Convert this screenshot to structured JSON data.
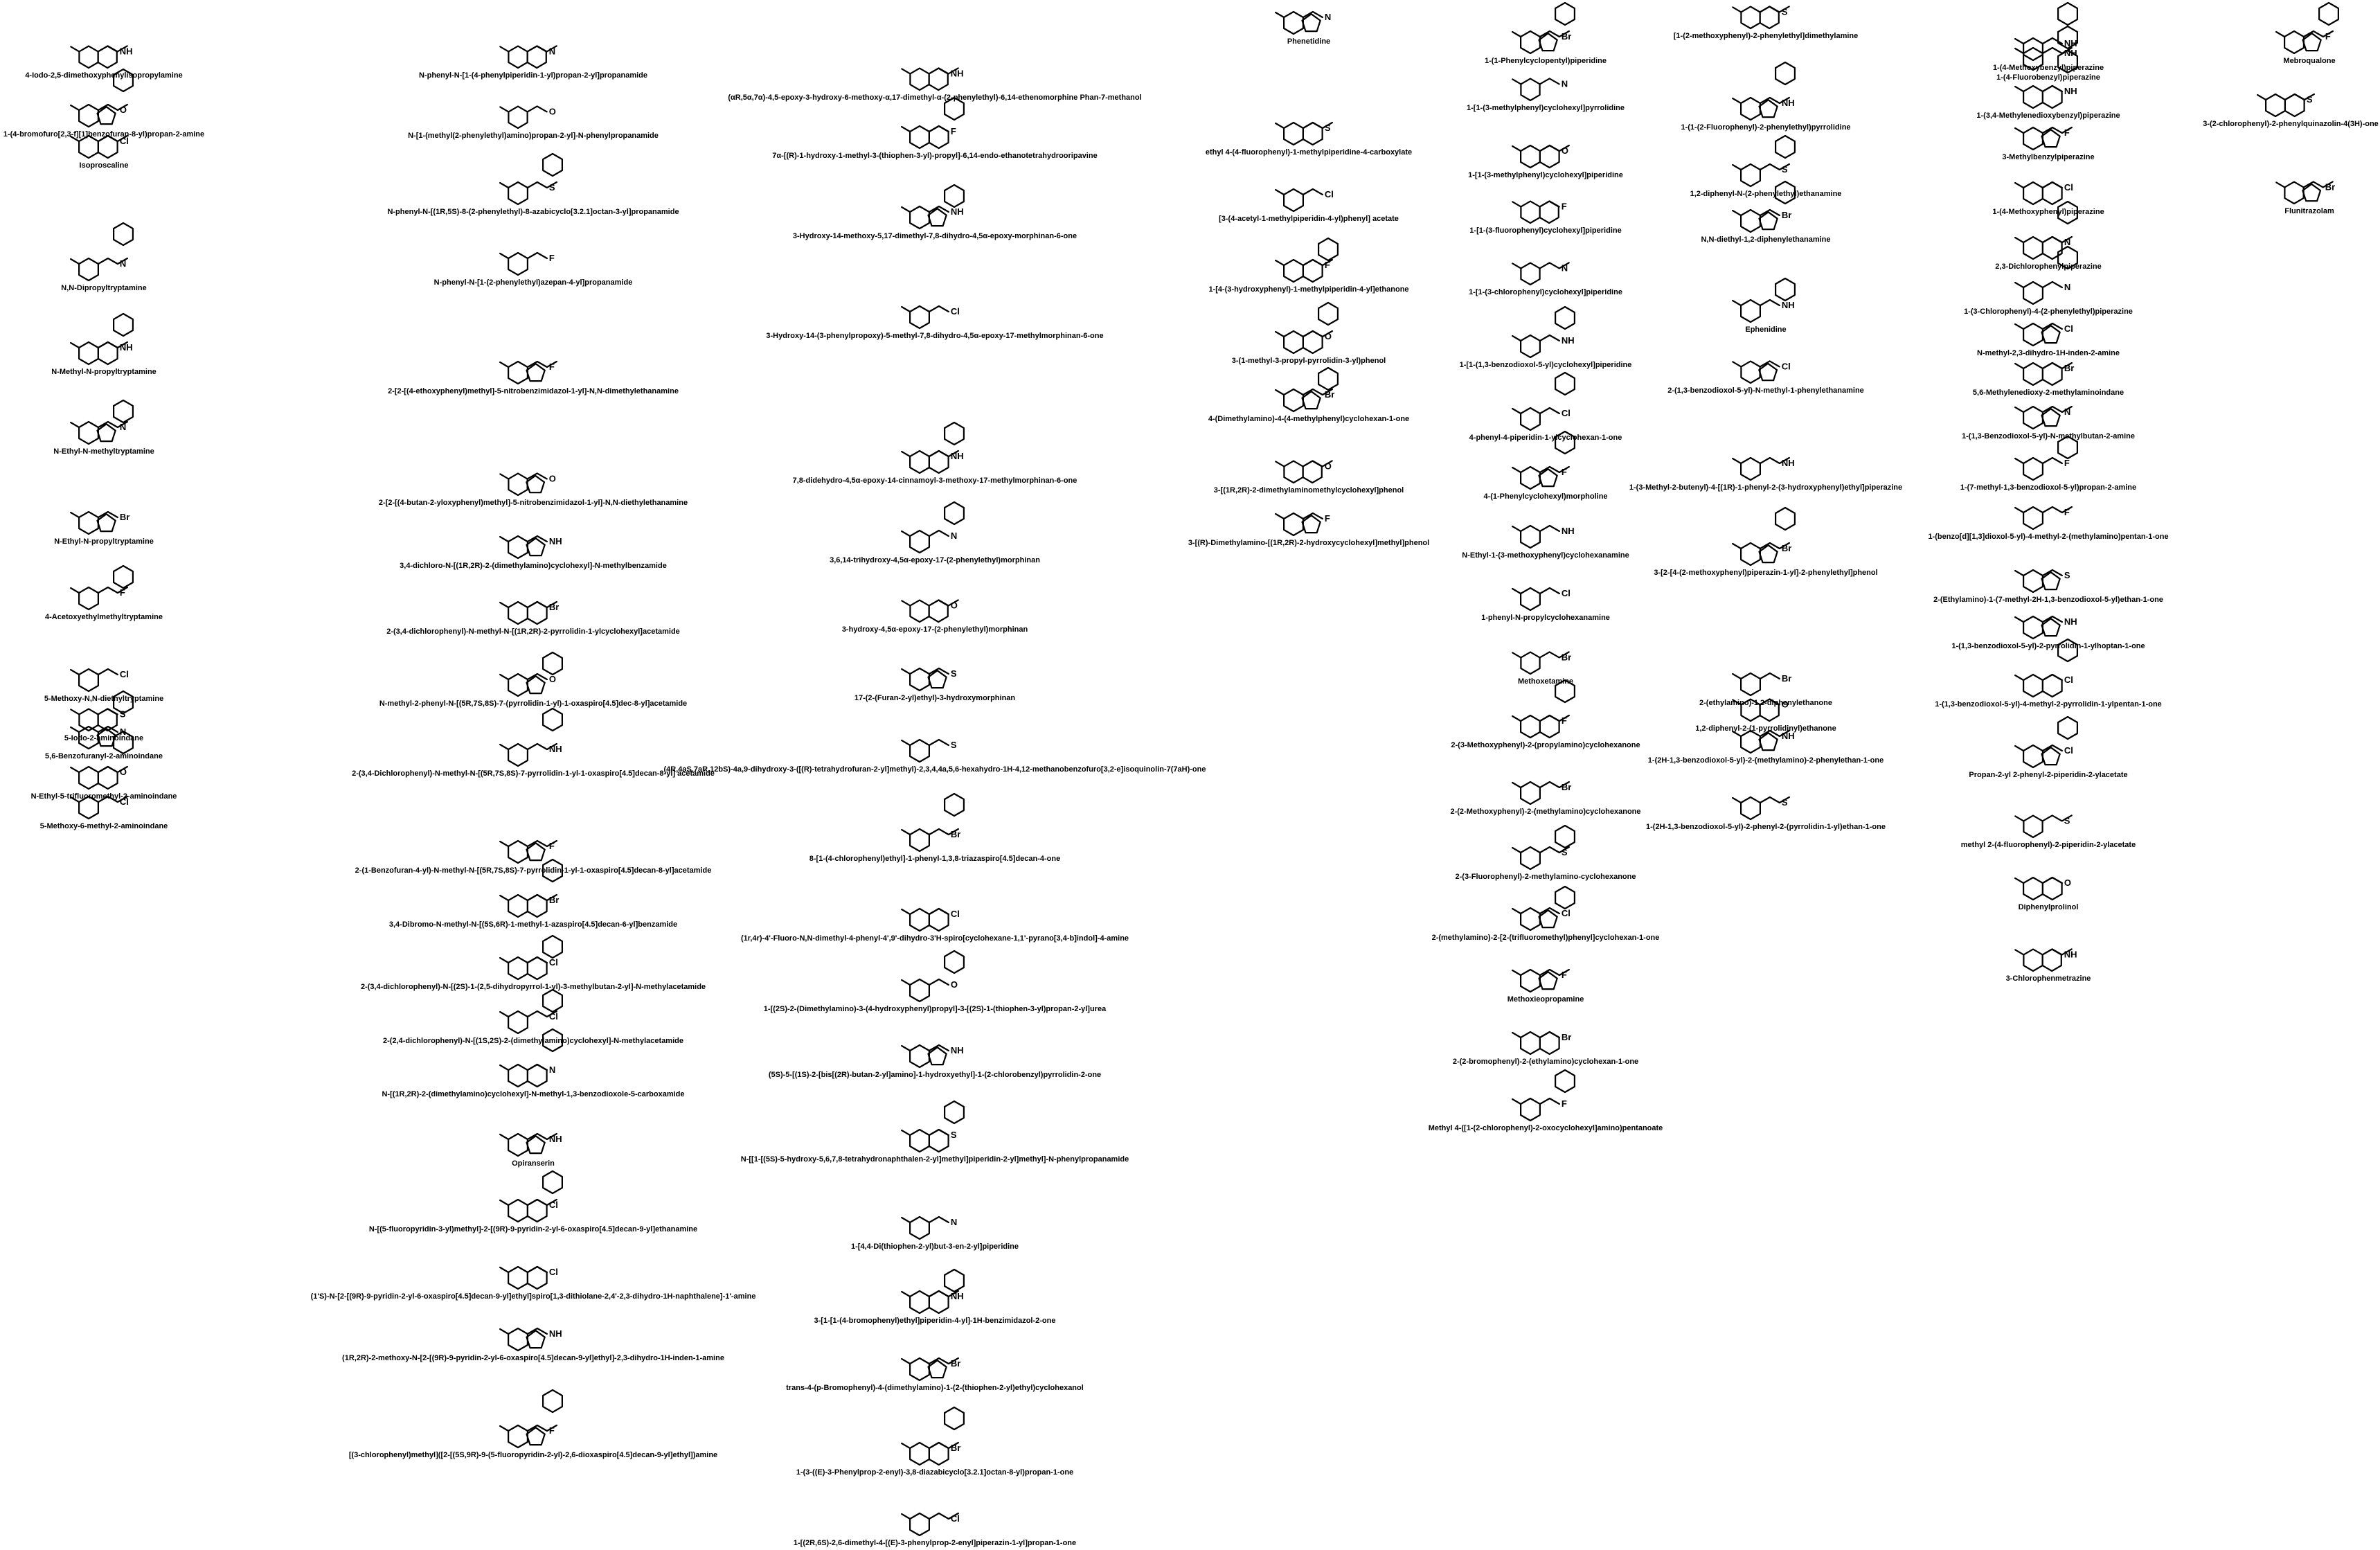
{
  "columns": [
    {
      "compounds": [
        "4-Iodo-2,5-dimethoxyphenylisopropylamine",
        "1-(4-bromofuro[2,3-f][1]benzofuran-8-yl)propan-2-amine",
        "Isoproscaline",
        "N,N-Dipropyltryptamine",
        "N-Methyl-N-propyltryptamine",
        "N-Ethyl-N-methyltryptamine",
        "N-Ethyl-N-propyltryptamine",
        "4-Acetoxyethylmethyltryptamine",
        "5-Methoxy-N,N-diethyltryptamine",
        "5-Iodo-2-aminoindane",
        "5,6-Benzofuranyl-2-aminoindane",
        "N-Ethyl-5-trifluoromethyl-2-aminoindane",
        "5-Methoxy-6-methyl-2-aminoindane"
      ]
    },
    {
      "compounds": [
        "N-phenyl-N-[1-(4-phenylpiperidin-1-yl)propan-2-yl]propanamide",
        "N-[1-(methyl(2-phenylethyl)amino)propan-2-yl]-N-phenylpropanamide",
        "N-phenyl-N-[(1R,5S)-8-(2-phenylethyl)-8-azabicyclo[3.2.1]octan-3-yl]propanamide",
        "N-phenyl-N-[1-(2-phenylethyl)azepan-4-yl]propanamide",
        "2-[2-[(4-ethoxyphenyl)methyl]-5-nitrobenzimidazol-1-yl]-N,N-dimethylethanamine",
        "2-[2-[(4-butan-2-yloxyphenyl)methyl]-5-nitrobenzimidazol-1-yl]-N,N-diethylethanamine",
        "3,4-dichloro-N-[(1R,2R)-2-(dimethylamino)cyclohexyl]-N-methylbenzamide",
        "2-(3,4-dichlorophenyl)-N-methyl-N-[(1R,2R)-2-pyrrolidin-1-ylcyclohexyl]acetamide",
        "N-methyl-2-phenyl-N-[(5R,7S,8S)-7-(pyrrolidin-1-yl)-1-oxaspiro[4.5]dec-8-yl]acetamide",
        "2-(3,4-Dichlorophenyl)-N-methyl-N-[(5R,7S,8S)-7-pyrrolidin-1-yl-1-oxaspiro[4.5]decan-8-yl] acetamide",
        "2-(1-Benzofuran-4-yl)-N-methyl-N-[(5R,7S,8S)-7-pyrrolidin-1-yl-1-oxaspiro[4.5]decan-8-yl]acetamide",
        "3,4-Dibromo-N-methyl-N-[(5S,6R)-1-methyl-1-azaspiro[4.5]decan-6-yl]benzamide",
        "2-(3,4-dichlorophenyl)-N-[(2S)-1-(2,5-dihydropyrrol-1-yl)-3-methylbutan-2-yl]-N-methylacetamide",
        "2-(2,4-dichlorophenyl)-N-[(1S,2S)-2-(dimethylamino)cyclohexyl]-N-methylacetamide",
        "N-[(1R,2R)-2-(dimethylamino)cyclohexyl]-N-methyl-1,3-benzodioxole-5-carboxamide",
        "Opiranserin",
        "N-[(5-fluoropyridin-3-yl)methyl]-2-[(9R)-9-pyridin-2-yl-6-oxaspiro[4.5]decan-9-yl]ethanamine",
        "(1'S)-N-[2-[(9R)-9-pyridin-2-yl-6-oxaspiro[4.5]decan-9-yl]ethyl]spiro[1,3-dithiolane-2,4'-2,3-dihydro-1H-naphthalene]-1'-amine",
        "(1R,2R)-2-methoxy-N-[2-[(9R)-9-pyridin-2-yl-6-oxaspiro[4.5]decan-9-yl]ethyl]-2,3-dihydro-1H-inden-1-amine",
        "[(3-chlorophenyl)methyl]([2-[(5S,9R)-9-(5-fluoropyridin-2-yl)-2,6-dioxaspiro[4.5]decan-9-yl]ethyl])amine"
      ]
    },
    {
      "compounds": [
        "(αR,5α,7α)-4,5-epoxy-3-hydroxy-6-methoxy-α,17-dimethyl-α-(2-phenylethyl)-6,14-ethenomorphine Phan-7-methanol",
        "7α-[(R)-1-hydroxy-1-methyl-3-(thiophen-3-yl)-propyl]-6,14-endo-ethanotetrahydrooripavine",
        "3-Hydroxy-14-methoxy-5,17-dimethyl-7,8-dihydro-4,5α-epoxy-morphinan-6-one",
        "3-Hydroxy-14-(3-phenylpropoxy)-5-methyl-7,8-dihydro-4,5α-epoxy-17-methylmorphinan-6-one",
        "7,8-didehydro-4,5α-epoxy-14-cinnamoyl-3-methoxy-17-methylmorphinan-6-one",
        "3,6,14-trihydroxy-4,5α-epoxy-17-(2-phenylethyl)morphinan",
        "3-hydroxy-4,5α-epoxy-17-(2-phenylethyl)morphinan",
        "17-(2-(Furan-2-yl)ethyl)-3-hydroxymorphinan",
        "(4R,4aS,7aR,12bS)-4a,9-dihydroxy-3-([(R)-tetrahydrofuran-2-yl]methyl)-2,3,4,4a,5,6-hexahydro-1H-4,12-methanobenzofuro[3,2-e]isoquinolin-7(7aH)-one",
        "8-[1-(4-chlorophenyl)ethyl]-1-phenyl-1,3,8-triazaspiro[4.5]decan-4-one",
        "(1r,4r)-4'-Fluoro-N,N-dimethyl-4-phenyl-4',9'-dihydro-3'H-spiro[cyclohexane-1,1'-pyrano[3,4-b]indol]-4-amine",
        "1-[(2S)-2-(Dimethylamino)-3-(4-hydroxyphenyl)propyl]-3-[(2S)-1-(thiophen-3-yl)propan-2-yl]urea",
        "(5S)-5-[(1S)-2-[bis[(2R)-butan-2-yl]amino]-1-hydroxyethyl]-1-(2-chlorobenzyl)pyrrolidin-2-one",
        "N-[[1-[(5S)-5-hydroxy-5,6,7,8-tetrahydronaphthalen-2-yl]methyl]piperidin-2-yl]methyl]-N-phenylpropanamide",
        "1-[4,4-Di(thiophen-2-yl)but-3-en-2-yl]piperidine",
        "3-[1-[1-(4-bromophenyl)ethyl]piperidin-4-yl]-1H-benzimidazol-2-one",
        "trans-4-(p-Bromophenyl)-4-(dimethylamino)-1-(2-(thiophen-2-yl)ethyl)cyclohexanol",
        "1-(3-((E)-3-Phenylprop-2-enyl)-3,8-diazabicyclo[3.2.1]octan-8-yl)propan-1-one",
        "1-[(2R,6S)-2,6-dimethyl-4-[(E)-3-phenylprop-2-enyl]piperazin-1-yl]propan-1-one"
      ]
    },
    {
      "compounds": [
        "Phenetidine",
        "ethyl 4-(4-fluorophenyl)-1-methylpiperidine-4-carboxylate",
        "[3-(4-acetyl-1-methylpiperidin-4-yl)phenyl] acetate",
        "1-[4-(3-hydroxyphenyl)-1-methylpiperidin-4-yl]ethanone",
        "3-(1-methyl-3-propyl-pyrrolidin-3-yl)phenol",
        "4-(Dimethylamino)-4-(4-methylphenyl)cyclohexan-1-one",
        "3-[(1R,2R)-2-dimethylaminomethylcyclohexyl]phenol",
        "3-[(R)-Dimethylamino-[(1R,2R)-2-hydroxycyclohexyl]methyl]phenol"
      ]
    },
    {
      "compounds": [
        "1-(1-Phenylcyclopentyl)piperidine",
        "1-[1-(3-methylphenyl)cyclohexyl]pyrrolidine",
        "1-[1-(3-methylphenyl)cyclohexyl]piperidine",
        "1-[1-(3-fluorophenyl)cyclohexyl]piperidine",
        "1-[1-(3-chlorophenyl)cyclohexyl]piperidine",
        "1-[1-(1,3-benzodioxol-5-yl)cyclohexyl]piperidine",
        "4-phenyl-4-piperidin-1-ylcyclohexan-1-one",
        "4-(1-Phenylcyclohexyl)morpholine",
        "N-Ethyl-1-(3-methoxyphenyl)cyclohexanamine",
        "1-phenyl-N-propylcyclohexanamine",
        "Methoxetamine",
        "2-(3-Methoxyphenyl)-2-(propylamino)cyclohexanone",
        "2-(2-Methoxyphenyl)-2-(methylamino)cyclohexanone",
        "2-(3-Fluorophenyl)-2-methylamino-cyclohexanone",
        "2-(methylamino)-2-[2-(trifluoromethyl)phenyl]cyclohexan-1-one",
        "Methoxieopropamine",
        "2-(2-bromophenyl)-2-(ethylamino)cyclohexan-1-one",
        "Methyl 4-([1-(2-chlorophenyl)-2-oxocyclohexyl]amino)pentanoate"
      ]
    },
    {
      "compounds": [
        "[1-(2-methoxyphenyl)-2-phenylethyl]dimethylamine",
        "1-(1-(2-Fluorophenyl)-2-phenylethyl)pyrrolidine",
        "1,2-diphenyl-N-(2-phenylethyl)ethanamine",
        "N,N-diethyl-1,2-diphenylethanamine",
        "Ephenidine",
        "2-(1,3-benzodioxol-5-yl)-N-methyl-1-phenylethanamine",
        "1-(3-Methyl-2-butenyl)-4-[(1R)-1-phenyl-2-(3-hydroxyphenyl)ethyl]piperazine",
        "3-[2-[4-(2-methoxyphenyl)piperazin-1-yl]-2-phenylethyl]phenol",
        "2-(ethylamino)-1,2-diphenylethanone",
        "1,2-diphenyl-2-(1-pyrrolidinyl)ethanone",
        "1-(2H-1,3-benzodioxol-5-yl)-2-(methylamino)-2-phenylethan-1-one",
        "1-(2H-1,3-benzodioxol-5-yl)-2-phenyl-2-(pyrrolidin-1-yl)ethan-1-one"
      ]
    },
    {
      "compounds": [
        "1-(4-Methoxybenzyl)piperazine",
        "1-(4-Fluorobenzyl)piperazine",
        "1-(3,4-Methylenedioxybenzyl)piperazine",
        "3-Methylbenzylpiperazine",
        "1-(4-Methoxyphenyl)piperazine",
        "2,3-Dichlorophenylpiperazine",
        "1-(3-Chlorophenyl)-4-(2-phenylethyl)piperazine",
        "N-methyl-2,3-dihydro-1H-inden-2-amine",
        "5,6-Methylenedioxy-2-methylaminoindane",
        "1-(1,3-Benzodioxol-5-yl)-N-methylbutan-2-amine",
        "1-(7-methyl-1,3-benzodioxol-5-yl)propan-2-amine",
        "1-(benzo[d][1,3]dioxol-5-yl)-4-methyl-2-(methylamino)pentan-1-one",
        "2-(Ethylamino)-1-(7-methyl-2H-1,3-benzodioxol-5-yl)ethan-1-one",
        "1-(1,3-benzodioxol-5-yl)-2-pyrrolidin-1-ylhoptan-1-one",
        "1-(1,3-benzodioxol-5-yl)-4-methyl-2-pyrrolidin-1-ylpentan-1-one",
        "Propan-2-yl 2-phenyl-2-piperidin-2-ylacetate",
        "methyl 2-(4-fluorophenyl)-2-piperidin-2-ylacetate",
        "Diphenylprolinol",
        "3-Chlorophenmetrazine"
      ]
    },
    {
      "compounds": [
        "Mebroqualone",
        "3-(2-chlorophenyl)-2-phenylquinazolin-4(3H)-one",
        "Flunitrazolam"
      ]
    }
  ]
}
